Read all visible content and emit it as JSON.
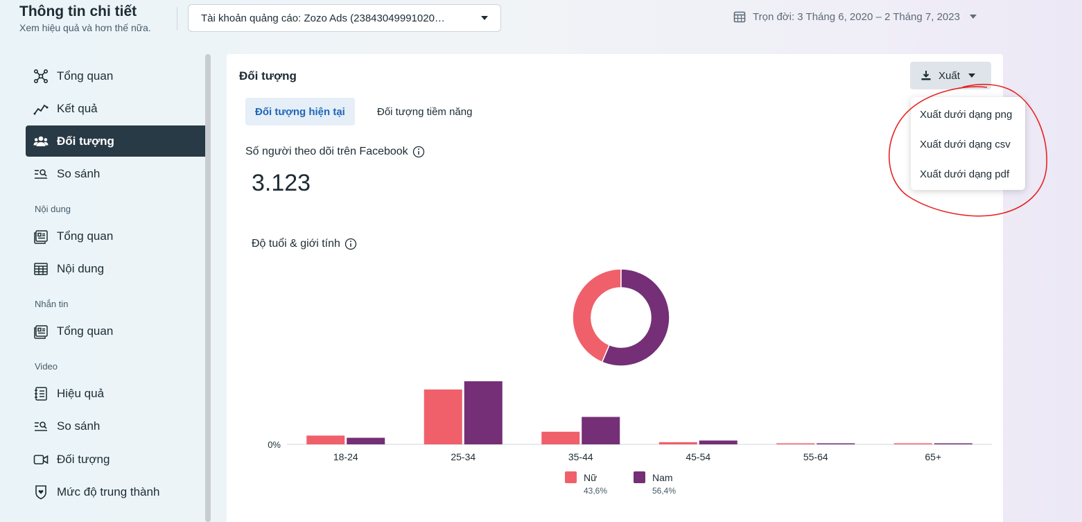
{
  "header": {
    "title": "Thông tin chi tiết",
    "subtitle": "Xem hiệu quả và hơn thế nữa.",
    "account_label": "Tài khoản quảng cáo: Zozo Ads (23843049991020…",
    "date_range": "Trọn đời: 3 Tháng 6, 2020 – 2 Tháng 7, 2023"
  },
  "sidebar": {
    "items": [
      {
        "label": "Tổng quan",
        "icon": "network-icon"
      },
      {
        "label": "Kết quả",
        "icon": "trend-line-icon"
      },
      {
        "label": "Đối tượng",
        "icon": "people-icon",
        "active": true
      },
      {
        "label": "So sánh",
        "icon": "compare-search-icon"
      }
    ],
    "sections": [
      {
        "title": "Nội dung",
        "items": [
          {
            "label": "Tổng quan",
            "icon": "content-overview-icon"
          },
          {
            "label": "Nội dung",
            "icon": "table-icon"
          }
        ]
      },
      {
        "title": "Nhắn tin",
        "items": [
          {
            "label": "Tổng quan",
            "icon": "content-overview-icon"
          }
        ]
      },
      {
        "title": "Video",
        "items": [
          {
            "label": "Hiệu quả",
            "icon": "notebook-icon"
          },
          {
            "label": "So sánh",
            "icon": "compare-search-icon"
          },
          {
            "label": "Đối tượng",
            "icon": "video-camera-icon"
          },
          {
            "label": "Mức độ trung thành",
            "icon": "shield-heart-icon"
          }
        ]
      }
    ]
  },
  "panel": {
    "title": "Đối tượng",
    "export_label": "Xuất",
    "tabs": [
      {
        "label": "Đối tượng hiện tại",
        "active": true
      },
      {
        "label": "Đối tượng tiềm năng",
        "active": false
      }
    ],
    "metric_label": "Số người theo dõi trên Facebook",
    "metric_value": "3.123",
    "chart_title": "Độ tuổi & giới tính"
  },
  "export_menu": {
    "options": [
      "Xuất dưới dạng png",
      "Xuất dưới dạng csv",
      "Xuất dưới dạng pdf"
    ]
  },
  "colors": {
    "female": "#f0606a",
    "male": "#742f76",
    "active_nav": "#283a46",
    "tab_active_text": "#1d67b8",
    "annotation": "#e8211f"
  },
  "chart_data": [
    {
      "type": "pie",
      "labels": [
        "Nữ",
        "Nam"
      ],
      "values": [
        43.6,
        56.4
      ],
      "donut": true
    },
    {
      "type": "bar",
      "categories": [
        "18-24",
        "25-34",
        "35-44",
        "45-54",
        "55-64",
        "65+"
      ],
      "series": [
        {
          "name": "Nữ",
          "values": [
            1.6,
            10.0,
            2.3,
            0.4,
            0.15,
            0.15
          ],
          "percent_label": "43,6%"
        },
        {
          "name": "Nam",
          "values": [
            1.2,
            11.5,
            5.0,
            0.7,
            0.15,
            0.15
          ],
          "percent_label": "56,4%"
        }
      ],
      "ytick_label": "0%",
      "ylim": [
        0,
        12
      ]
    }
  ]
}
